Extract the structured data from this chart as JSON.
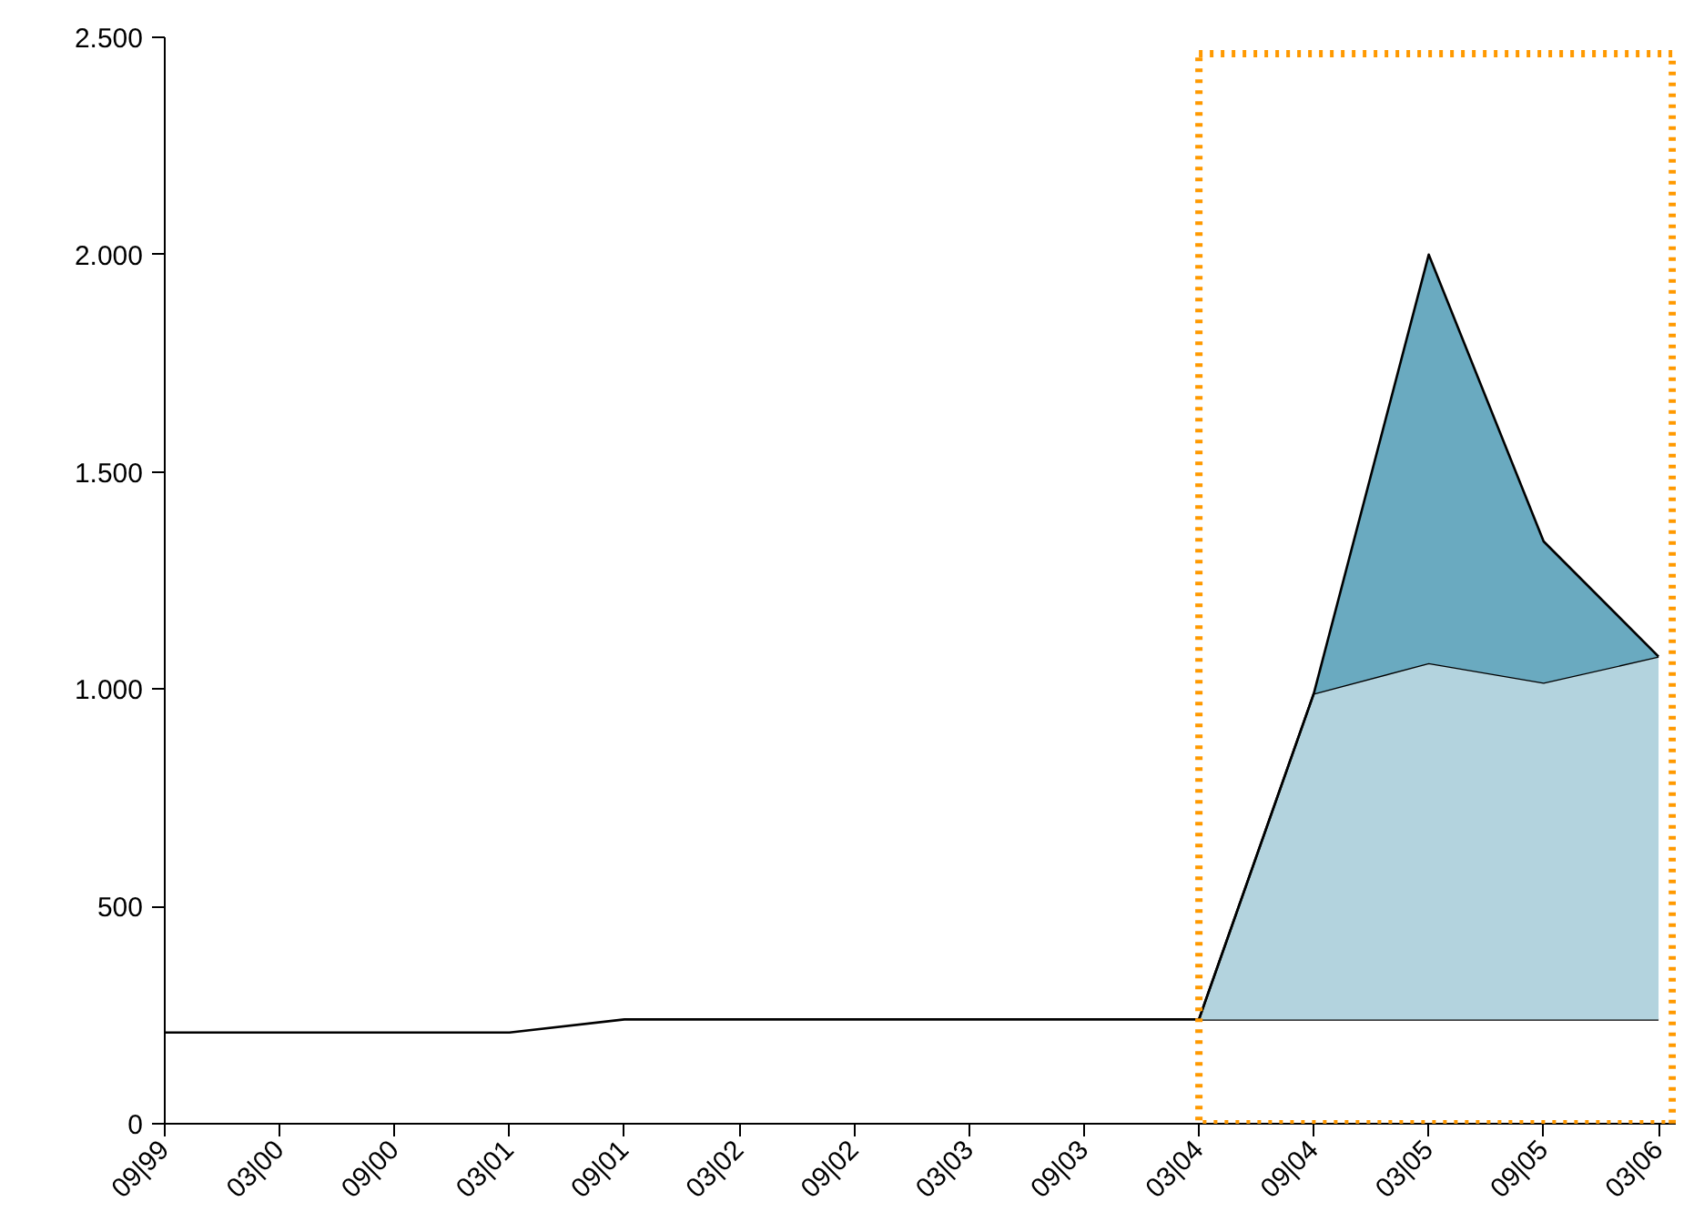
{
  "chart_data": {
    "type": "area",
    "stacked": true,
    "categories": [
      "09|99",
      "03|00",
      "09|00",
      "03|01",
      "09|01",
      "03|02",
      "09|02",
      "03|03",
      "09|03",
      "03|04",
      "09|04",
      "03|05",
      "09|05",
      "03|06"
    ],
    "series": [
      {
        "color": "#ffffff",
        "values": [
          210,
          210,
          210,
          210,
          240,
          240,
          240,
          240,
          240,
          240,
          240,
          240,
          240,
          240
        ]
      },
      {
        "color": "#b3d3de",
        "values": [
          null,
          null,
          null,
          null,
          null,
          null,
          null,
          null,
          null,
          0,
          750,
          820,
          775,
          835
        ]
      },
      {
        "color": "#6aaac0",
        "values": [
          null,
          null,
          null,
          null,
          null,
          null,
          null,
          null,
          null,
          0,
          0,
          940,
          325,
          0
        ]
      }
    ],
    "ylim": [
      0,
      2500
    ],
    "yticks": [
      0,
      {
        "value": 500,
        "label": "500"
      },
      {
        "value": 1000,
        "label": "1.000"
      },
      {
        "value": 1500,
        "label": "1.500"
      },
      {
        "value": 2000,
        "label": "2.000"
      },
      {
        "value": 2500,
        "label": "2.500"
      }
    ]
  }
}
